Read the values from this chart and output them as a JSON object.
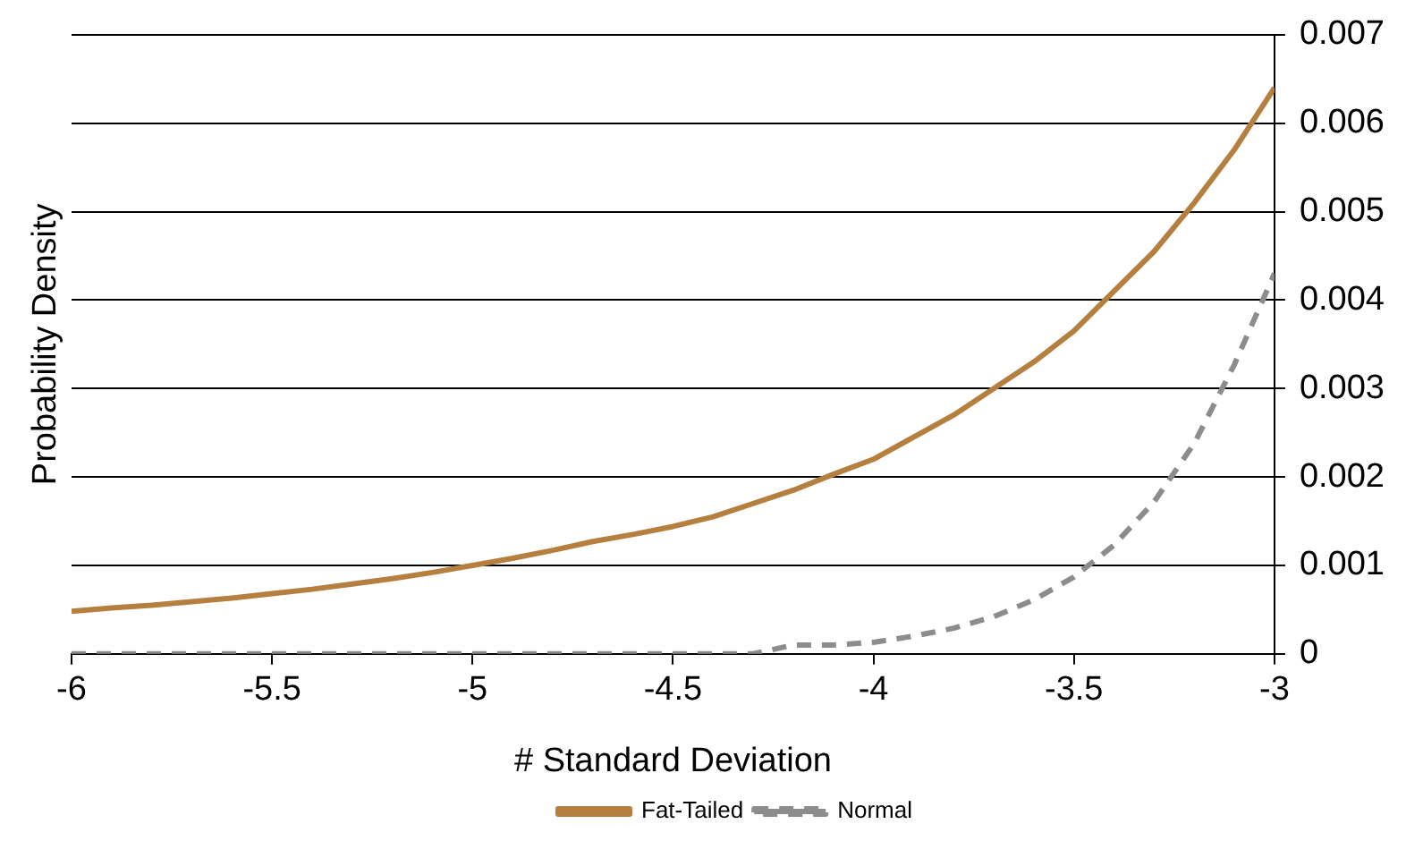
{
  "chart_data": {
    "type": "line",
    "xlabel": "# Standard Deviation",
    "ylabel": "Probability Density",
    "x": [
      -6,
      -5.9,
      -5.8,
      -5.7,
      -5.6,
      -5.5,
      -5.4,
      -5.3,
      -5.2,
      -5.1,
      -5,
      -4.9,
      -4.8,
      -4.7,
      -4.6,
      -4.5,
      -4.4,
      -4.3,
      -4.2,
      -4.1,
      -4,
      -3.9,
      -3.8,
      -3.7,
      -3.6,
      -3.5,
      -3.4,
      -3.3,
      -3.2,
      -3.1,
      -3
    ],
    "series": [
      {
        "name": "Fat-Tailed",
        "color": "#b5803f",
        "line_style": "solid",
        "values": [
          0.00048,
          0.00052,
          0.00055,
          0.00059,
          0.00063,
          0.00068,
          0.00073,
          0.00079,
          0.00085,
          0.00092,
          0.001,
          0.00108,
          0.00117,
          0.00127,
          0.00135,
          0.00144,
          0.00155,
          0.0017,
          0.00185,
          0.00203,
          0.0022,
          0.00245,
          0.0027,
          0.003,
          0.0033,
          0.00365,
          0.0041,
          0.00455,
          0.0051,
          0.0057,
          0.0064
        ]
      },
      {
        "name": "Normal",
        "color": "#8c8c8c",
        "line_style": "dashed",
        "values": [
          0,
          0,
          0,
          0,
          0,
          0,
          0,
          0,
          0,
          0,
          0,
          0,
          0,
          0,
          0,
          0,
          0,
          0,
          0.0001,
          0.0001,
          0.00013,
          0.0002,
          0.00029,
          0.00042,
          0.00061,
          0.00087,
          0.00123,
          0.00172,
          0.00238,
          0.00327,
          0.0043
        ]
      }
    ],
    "xlim": [
      -6,
      -3
    ],
    "xticks": [
      -6,
      -5.5,
      -5,
      -4.5,
      -4,
      -3.5,
      -3
    ],
    "ylim": [
      0,
      0.007
    ],
    "yticks": [
      0,
      0.001,
      0.002,
      0.003,
      0.004,
      0.005,
      0.006,
      0.007
    ],
    "grid": "y",
    "legend": "bottom",
    "marker": "none"
  }
}
